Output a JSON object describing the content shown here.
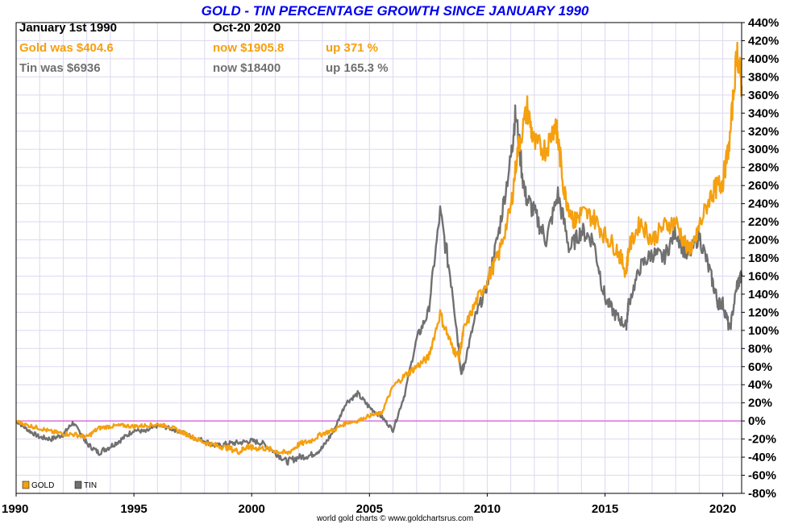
{
  "chart_data": {
    "type": "line",
    "title": "GOLD - TIN PERCENTAGE GROWTH SINCE JANUARY 1990",
    "header": {
      "start_label": "January 1st 1990",
      "end_label": "Oct-20  2020",
      "gold": {
        "was": "Gold was $404.6",
        "now": "now $1905.8",
        "change": "up 371 %"
      },
      "tin": {
        "was": "Tin was $6936",
        "now": "now $18400",
        "change": "up 165.3 %"
      }
    },
    "credit": "world gold charts © www.goldchartsrus.com",
    "x_ticks": [
      "1990",
      "1995",
      "2000",
      "2005",
      "2010",
      "2015",
      "2020"
    ],
    "y_ticks": [
      "440%",
      "420%",
      "400%",
      "380%",
      "360%",
      "340%",
      "320%",
      "300%",
      "280%",
      "260%",
      "240%",
      "220%",
      "200%",
      "180%",
      "160%",
      "140%",
      "120%",
      "100%",
      "80%",
      "60%",
      "40%",
      "20%",
      "0%",
      "-20%",
      "-40%",
      "-60%",
      "-80%"
    ],
    "xlim": [
      1990,
      2020.8
    ],
    "ylim": [
      -80,
      440
    ],
    "grid": true,
    "legend_position": "bottom-left",
    "colors": {
      "gold": "#f5a00f",
      "tin": "#707070",
      "zero_line": "#cc33cc",
      "grid": "#ddd8f0"
    },
    "series": [
      {
        "name": "GOLD",
        "points": [
          [
            1990.0,
            0
          ],
          [
            1990.5,
            -5
          ],
          [
            1991.0,
            -8
          ],
          [
            1991.5,
            -12
          ],
          [
            1992.0,
            -14
          ],
          [
            1992.5,
            -15
          ],
          [
            1993.0,
            -18
          ],
          [
            1993.5,
            -8
          ],
          [
            1994.0,
            -6
          ],
          [
            1994.5,
            -5
          ],
          [
            1995.0,
            -6
          ],
          [
            1995.5,
            -5
          ],
          [
            1996.0,
            -4
          ],
          [
            1996.5,
            -6
          ],
          [
            1997.0,
            -12
          ],
          [
            1997.5,
            -18
          ],
          [
            1998.0,
            -24
          ],
          [
            1998.5,
            -27
          ],
          [
            1999.0,
            -30
          ],
          [
            1999.5,
            -34
          ],
          [
            1999.8,
            -28
          ],
          [
            2000.0,
            -30
          ],
          [
            2000.5,
            -30
          ],
          [
            2001.0,
            -33
          ],
          [
            2001.5,
            -36
          ],
          [
            2002.0,
            -26
          ],
          [
            2002.5,
            -22
          ],
          [
            2003.0,
            -14
          ],
          [
            2003.5,
            -10
          ],
          [
            2004.0,
            -2
          ],
          [
            2004.5,
            0
          ],
          [
            2005.0,
            6
          ],
          [
            2005.5,
            8
          ],
          [
            2006.0,
            38
          ],
          [
            2006.5,
            50
          ],
          [
            2007.0,
            60
          ],
          [
            2007.5,
            70
          ],
          [
            2008.0,
            118
          ],
          [
            2008.5,
            82
          ],
          [
            2008.8,
            70
          ],
          [
            2009.0,
            100
          ],
          [
            2009.5,
            130
          ],
          [
            2010.0,
            155
          ],
          [
            2010.5,
            185
          ],
          [
            2011.0,
            235
          ],
          [
            2011.3,
            300
          ],
          [
            2011.7,
            345
          ],
          [
            2012.0,
            305
          ],
          [
            2012.5,
            300
          ],
          [
            2012.9,
            330
          ],
          [
            2013.0,
            310
          ],
          [
            2013.3,
            250
          ],
          [
            2013.7,
            220
          ],
          [
            2014.0,
            230
          ],
          [
            2014.5,
            225
          ],
          [
            2015.0,
            205
          ],
          [
            2015.5,
            190
          ],
          [
            2015.9,
            165
          ],
          [
            2016.0,
            190
          ],
          [
            2016.5,
            220
          ],
          [
            2017.0,
            200
          ],
          [
            2017.5,
            215
          ],
          [
            2018.0,
            220
          ],
          [
            2018.5,
            190
          ],
          [
            2018.8,
            195
          ],
          [
            2019.0,
            215
          ],
          [
            2019.5,
            250
          ],
          [
            2019.8,
            260
          ],
          [
            2020.0,
            265
          ],
          [
            2020.3,
            310
          ],
          [
            2020.6,
            410
          ],
          [
            2020.8,
            370
          ]
        ]
      },
      {
        "name": "TIN",
        "points": [
          [
            1990.0,
            0
          ],
          [
            1990.5,
            -10
          ],
          [
            1991.0,
            -18
          ],
          [
            1991.5,
            -20
          ],
          [
            1992.0,
            -15
          ],
          [
            1992.4,
            -2
          ],
          [
            1992.8,
            -15
          ],
          [
            1993.0,
            -25
          ],
          [
            1993.5,
            -35
          ],
          [
            1994.0,
            -28
          ],
          [
            1994.5,
            -20
          ],
          [
            1995.0,
            -10
          ],
          [
            1995.5,
            -12
          ],
          [
            1996.0,
            -5
          ],
          [
            1996.5,
            -8
          ],
          [
            1997.0,
            -12
          ],
          [
            1997.5,
            -18
          ],
          [
            1998.0,
            -22
          ],
          [
            1998.5,
            -28
          ],
          [
            1999.0,
            -25
          ],
          [
            1999.5,
            -24
          ],
          [
            2000.0,
            -22
          ],
          [
            2000.5,
            -25
          ],
          [
            2001.0,
            -35
          ],
          [
            2001.5,
            -45
          ],
          [
            2002.0,
            -40
          ],
          [
            2002.5,
            -38
          ],
          [
            2003.0,
            -30
          ],
          [
            2003.5,
            -10
          ],
          [
            2004.0,
            20
          ],
          [
            2004.5,
            30
          ],
          [
            2005.0,
            15
          ],
          [
            2005.5,
            5
          ],
          [
            2006.0,
            -10
          ],
          [
            2006.5,
            30
          ],
          [
            2007.0,
            90
          ],
          [
            2007.5,
            120
          ],
          [
            2008.0,
            230
          ],
          [
            2008.5,
            150
          ],
          [
            2008.9,
            55
          ],
          [
            2009.0,
            60
          ],
          [
            2009.5,
            115
          ],
          [
            2010.0,
            150
          ],
          [
            2010.5,
            210
          ],
          [
            2011.0,
            290
          ],
          [
            2011.2,
            340
          ],
          [
            2011.6,
            250
          ],
          [
            2012.0,
            230
          ],
          [
            2012.5,
            200
          ],
          [
            2013.0,
            250
          ],
          [
            2013.5,
            190
          ],
          [
            2014.0,
            210
          ],
          [
            2014.5,
            200
          ],
          [
            2015.0,
            135
          ],
          [
            2015.5,
            115
          ],
          [
            2015.9,
            105
          ],
          [
            2016.0,
            130
          ],
          [
            2016.5,
            170
          ],
          [
            2017.0,
            185
          ],
          [
            2017.5,
            180
          ],
          [
            2018.0,
            210
          ],
          [
            2018.5,
            180
          ],
          [
            2019.0,
            205
          ],
          [
            2019.5,
            160
          ],
          [
            2019.8,
            130
          ],
          [
            2020.0,
            130
          ],
          [
            2020.3,
            100
          ],
          [
            2020.6,
            150
          ],
          [
            2020.8,
            160
          ]
        ]
      }
    ]
  }
}
